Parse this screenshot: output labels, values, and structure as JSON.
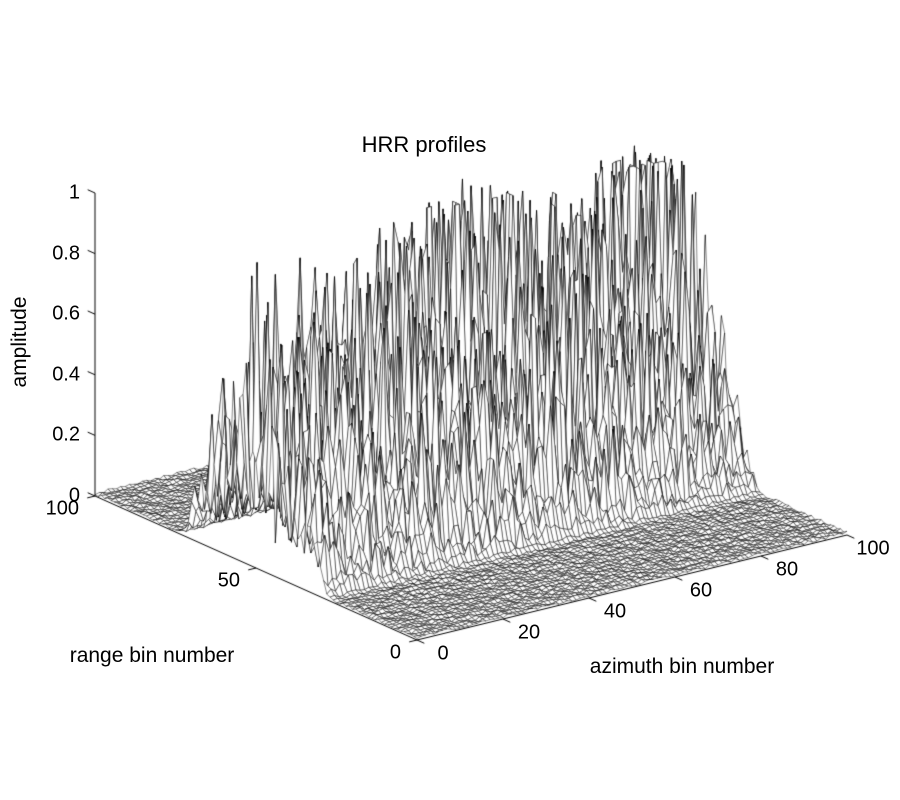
{
  "page": {
    "background_color": "#ffffff"
  },
  "chart_data": {
    "type": "mesh3d",
    "title": "HRR profiles",
    "xlabel": "azimuth bin number",
    "ylabel": "range bin number",
    "zlabel": "amplitude",
    "x_range": [
      0,
      100
    ],
    "y_range": [
      0,
      100
    ],
    "z_range": [
      0,
      1
    ],
    "x_ticks": [
      0,
      20,
      40,
      60,
      80,
      100
    ],
    "y_ticks": [
      0,
      50,
      100
    ],
    "z_ticks": [
      0,
      0.2,
      0.4,
      0.6,
      0.8,
      1
    ],
    "x_tick_labels": [
      "0",
      "20",
      "40",
      "60",
      "80",
      "100"
    ],
    "y_tick_labels": [
      "0",
      "50",
      "100"
    ],
    "z_tick_labels": [
      "0",
      "0.2",
      "0.4",
      "0.6",
      "0.8",
      "1"
    ],
    "grid": false,
    "legend": null,
    "colors": {
      "mesh_edge": "#000000",
      "mesh_face": "#ffffff",
      "axis": "#000000",
      "text": "#000000"
    },
    "description": "Black-and-white 3D wireframe mesh (MATLAB-style) of high range resolution radar profiles: amplitude versus range bin for 101 azimuth bins. A flat near-zero noise floor covers most of the base plane; a spiky signal band occupies range bins ~26-74 across all azimuth bins, with clusters of strong scatterer peaks reaching amplitude ~0.8-1.0.",
    "grid_size": {
      "azimuth_bins": 101,
      "range_bins": 101
    },
    "surface_model": {
      "seed": 1337,
      "noise_floor": [
        0.003,
        0.013
      ],
      "signal_band_range_bins": [
        26,
        74
      ],
      "band_edge_width": 8,
      "grass": {
        "base": 0.045,
        "var": 0.2,
        "exp": 1.5
      },
      "medium_spikes": {
        "amp": 0.3,
        "exp": 6
      },
      "scatterer_spike": {
        "min": 0.12,
        "var": 0.88,
        "exp": 2.5
      },
      "scatterers": [
        {
          "az": 2,
          "rg": 52,
          "saz": 5,
          "srg": 7,
          "h": 0.75
        },
        {
          "az": 10,
          "rg": 40,
          "saz": 6,
          "srg": 6,
          "h": 0.5
        },
        {
          "az": 22,
          "rg": 58,
          "saz": 6,
          "srg": 6,
          "h": 0.8
        },
        {
          "az": 30,
          "rg": 44,
          "saz": 7,
          "srg": 8,
          "h": 0.72
        },
        {
          "az": 45,
          "rg": 55,
          "saz": 8,
          "srg": 7,
          "h": 0.95
        },
        {
          "az": 58,
          "rg": 62,
          "saz": 7,
          "srg": 6,
          "h": 0.8
        },
        {
          "az": 66,
          "rg": 48,
          "saz": 7,
          "srg": 7,
          "h": 1.0
        },
        {
          "az": 76,
          "rg": 38,
          "saz": 8,
          "srg": 5,
          "h": 0.45
        },
        {
          "az": 84,
          "rg": 52,
          "saz": 6,
          "srg": 6,
          "h": 0.78
        },
        {
          "az": 93,
          "rg": 58,
          "saz": 6,
          "srg": 6,
          "h": 0.88
        },
        {
          "az": 98,
          "rg": 48,
          "saz": 5,
          "srg": 8,
          "h": 0.92
        },
        {
          "az": 50,
          "rg": 33,
          "saz": 10,
          "srg": 5,
          "h": 0.35
        }
      ]
    }
  }
}
